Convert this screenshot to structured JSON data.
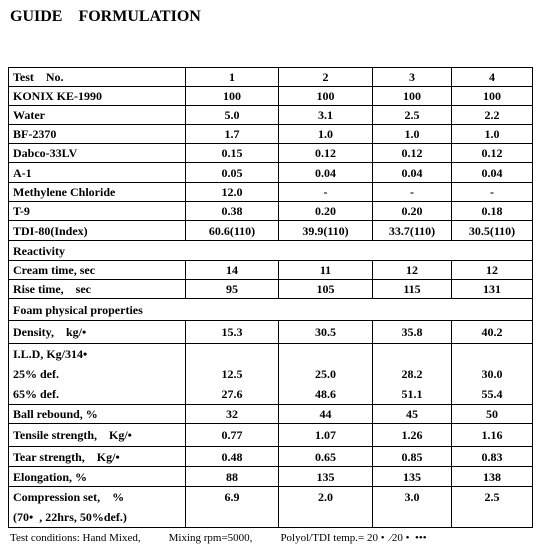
{
  "header": {
    "title": "GUIDE    FORMULATION"
  },
  "table": {
    "rows": [
      {
        "label": "Test    No.",
        "values": [
          "1",
          "2",
          "3",
          "4"
        ]
      },
      {
        "label": "KONIX KE-1990",
        "values": [
          "100",
          "100",
          "100",
          "100"
        ]
      },
      {
        "label": "Water",
        "values": [
          "5.0",
          "3.1",
          "2.5",
          "2.2"
        ]
      },
      {
        "label": "BF-2370",
        "values": [
          "1.7",
          "1.0",
          "1.0",
          "1.0"
        ]
      },
      {
        "label": "Dabco-33LV",
        "values": [
          "0.15",
          "0.12",
          "0.12",
          "0.12"
        ]
      },
      {
        "label": "A-1",
        "values": [
          "0.05",
          "0.04",
          "0.04",
          "0.04"
        ]
      },
      {
        "label": "Methylene Chloride",
        "values": [
          "12.0",
          "-",
          "-",
          "-"
        ]
      },
      {
        "label": "T-9",
        "values": [
          "0.38",
          "0.20",
          "0.20",
          "0.18"
        ]
      },
      {
        "label": "TDI-80(Index)",
        "values": [
          "60.6(110)",
          "39.9(110)",
          "33.7(110)",
          "30.5(110)"
        ]
      },
      {
        "section": "Reactivity"
      },
      {
        "label": "Cream time, sec",
        "values": [
          "14",
          "11",
          "12",
          "12"
        ]
      },
      {
        "label": "Rise time,    sec",
        "values": [
          "95",
          "105",
          "115",
          "131"
        ]
      },
      {
        "section": "Foam physical properties"
      },
      {
        "label": "Density,    kg/•",
        "values": [
          "15.3",
          "30.5",
          "35.8",
          "40.2"
        ]
      },
      {
        "label": "I.L.D, Kg/314•",
        "sub": [
          {
            "label": "25% def.",
            "values": [
              "12.5",
              "25.0",
              "28.2",
              "30.0"
            ]
          },
          {
            "label": "65% def.",
            "values": [
              "27.6",
              "48.6",
              "51.1",
              "55.4"
            ]
          }
        ]
      },
      {
        "label": "Ball rebound, %",
        "values": [
          "32",
          "44",
          "45",
          "50"
        ]
      },
      {
        "label": "Tensile strength,    Kg/•",
        "values": [
          "0.77",
          "1.07",
          "1.26",
          "1.16"
        ]
      },
      {
        "label": "Tear strength,    Kg/•",
        "values": [
          "0.48",
          "0.65",
          "0.85",
          "0.83"
        ]
      },
      {
        "label": "Elongation, %",
        "values": [
          "88",
          "135",
          "135",
          "138"
        ]
      },
      {
        "label": "Compression set,    %",
        "note": "(70•  , 22hrs, 50%def.)",
        "values": [
          "6.9",
          "2.0",
          "3.0",
          "2.5"
        ]
      }
    ]
  },
  "footer": {
    "parts": [
      "Test conditions: Hand Mixed,",
      "Mixing rpm=5000,",
      "Polyol/TDI temp.= 20 •  ⁄20 •  •••"
    ]
  }
}
